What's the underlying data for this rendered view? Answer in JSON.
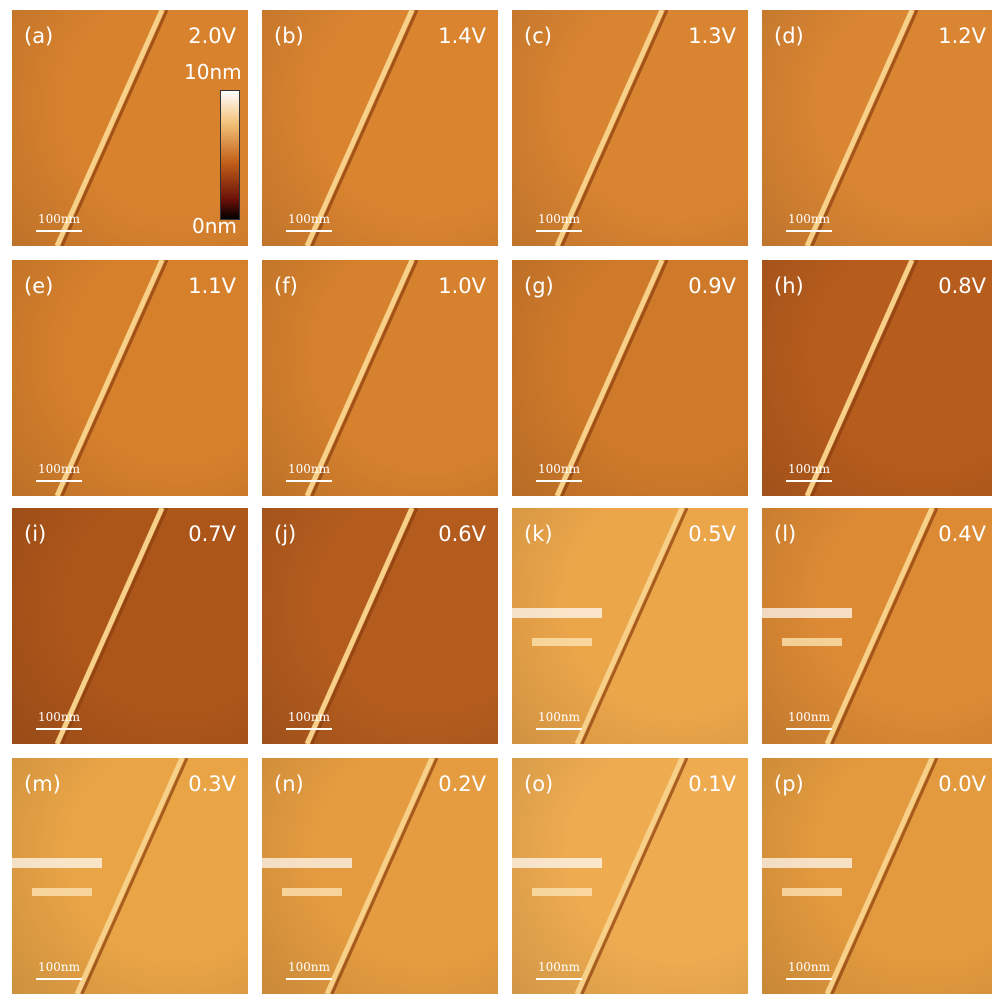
{
  "panels": [
    {
      "label": "(a)",
      "voltage": "2.0V",
      "scale_bar": "100nm"
    },
    {
      "label": "(b)",
      "voltage": "1.4V",
      "scale_bar": "100nm"
    },
    {
      "label": "(c)",
      "voltage": "1.3V",
      "scale_bar": "100nm"
    },
    {
      "label": "(d)",
      "voltage": "1.2V",
      "scale_bar": "100nm"
    },
    {
      "label": "(e)",
      "voltage": "1.1V",
      "scale_bar": "100nm"
    },
    {
      "label": "(f)",
      "voltage": "1.0V",
      "scale_bar": "100nm"
    },
    {
      "label": "(g)",
      "voltage": "0.9V",
      "scale_bar": "100nm"
    },
    {
      "label": "(h)",
      "voltage": "0.8V",
      "scale_bar": "100nm"
    },
    {
      "label": "(i)",
      "voltage": "0.7V",
      "scale_bar": "100nm"
    },
    {
      "label": "(j)",
      "voltage": "0.6V",
      "scale_bar": "100nm"
    },
    {
      "label": "(k)",
      "voltage": "0.5V",
      "scale_bar": "100nm"
    },
    {
      "label": "(l)",
      "voltage": "0.4V",
      "scale_bar": "100nm"
    },
    {
      "label": "(m)",
      "voltage": "0.3V",
      "scale_bar": "100nm"
    },
    {
      "label": "(n)",
      "voltage": "0.2V",
      "scale_bar": "100nm"
    },
    {
      "label": "(o)",
      "voltage": "0.1V",
      "scale_bar": "100nm"
    },
    {
      "label": "(p)",
      "voltage": "0.0V",
      "scale_bar": "100nm"
    }
  ],
  "colorbar": {
    "max": "10nm",
    "min": "0nm"
  }
}
